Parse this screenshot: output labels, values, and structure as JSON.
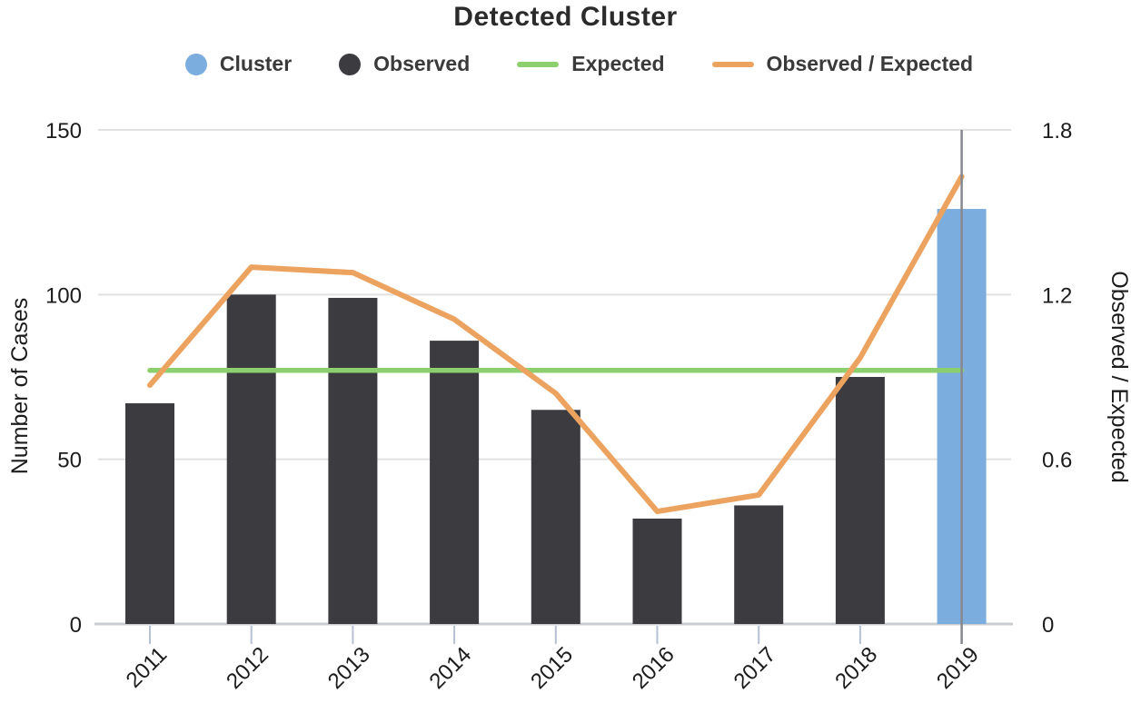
{
  "title": "Detected Cluster",
  "legend": {
    "items": [
      {
        "label": "Cluster",
        "marker": "circle",
        "color_key": "cluster_blue"
      },
      {
        "label": "Observed",
        "marker": "circle",
        "color_key": "bar_dark"
      },
      {
        "label": "Expected",
        "marker": "line",
        "color_key": "expected_green"
      },
      {
        "label": "Observed / Expected",
        "marker": "line",
        "color_key": "ratio_orange"
      }
    ]
  },
  "colors": {
    "cluster_blue": "#7badde",
    "bar_dark": "#3b3b40",
    "expected_green": "#8ccf6e",
    "ratio_orange": "#eca35f",
    "gridline": "#e1e1e1",
    "axis_line": "#c9ccd1",
    "category_tick": "#b6c0d4",
    "marker_line": "#85898f",
    "text_dark": "#1c1c1c"
  },
  "chart_data": {
    "type": "bar",
    "subtype": "combo-bar-line-dual-axis",
    "title": "Detected Cluster",
    "categories": [
      "2011",
      "2012",
      "2013",
      "2014",
      "2015",
      "2016",
      "2017",
      "2018",
      "2019"
    ],
    "series": [
      {
        "name": "Observed",
        "type": "bar",
        "axis": "left",
        "values": [
          67,
          100,
          99,
          86,
          65,
          32,
          36,
          75,
          null
        ]
      },
      {
        "name": "Cluster",
        "type": "bar",
        "axis": "left",
        "values": [
          null,
          null,
          null,
          null,
          null,
          null,
          null,
          null,
          126
        ]
      },
      {
        "name": "Expected",
        "type": "line",
        "axis": "left",
        "values": [
          77,
          77,
          77,
          77,
          77,
          77,
          77,
          77,
          77
        ]
      },
      {
        "name": "Observed / Expected",
        "type": "line",
        "axis": "right",
        "values": [
          0.87,
          1.3,
          1.28,
          1.11,
          0.84,
          0.41,
          0.47,
          0.97,
          1.63
        ]
      }
    ],
    "left_axis": {
      "label": "Number of Cases",
      "ticks": [
        0,
        50,
        100,
        150
      ],
      "range": [
        0,
        150
      ]
    },
    "right_axis": {
      "label": "Observed / Expected",
      "ticks": [
        0,
        0.6,
        1.2,
        1.8
      ],
      "tick_labels": [
        "0",
        "0.6",
        "1.2",
        "1.8"
      ],
      "range": [
        0,
        1.8
      ]
    },
    "cluster_marker": {
      "category": "2019"
    },
    "grid": true,
    "legend_position": "top"
  }
}
